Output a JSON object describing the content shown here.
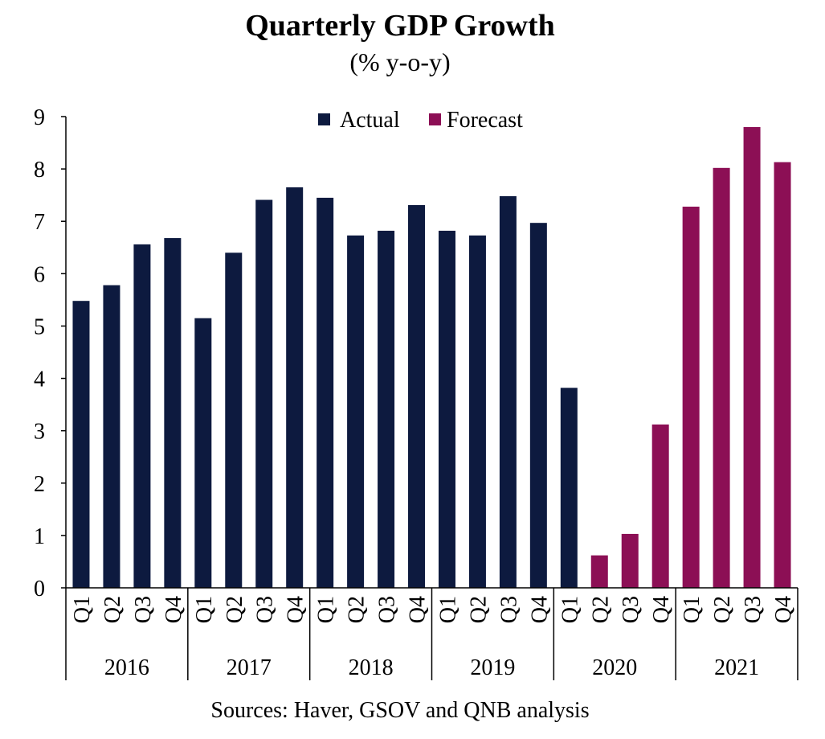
{
  "chart_data": {
    "type": "bar",
    "title": "Quarterly GDP Growth",
    "subtitle": "(% y-o-y)",
    "xlabel": "",
    "ylabel": "",
    "ylim": [
      0,
      9
    ],
    "yticks": [
      0,
      1,
      2,
      3,
      4,
      5,
      6,
      7,
      8,
      9
    ],
    "grid": false,
    "legend_position": "top-center",
    "years": [
      "2016",
      "2017",
      "2018",
      "2019",
      "2020",
      "2021"
    ],
    "quarters": [
      "Q1",
      "Q2",
      "Q3",
      "Q4"
    ],
    "categories": [
      "Q1",
      "Q2",
      "Q3",
      "Q4",
      "Q1",
      "Q2",
      "Q3",
      "Q4",
      "Q1",
      "Q2",
      "Q3",
      "Q4",
      "Q1",
      "Q2",
      "Q3",
      "Q4",
      "Q1",
      "Q2",
      "Q3",
      "Q4",
      "Q1",
      "Q2",
      "Q3",
      "Q4"
    ],
    "series": [
      {
        "name": "Actual",
        "color": "#0d1a3f",
        "values": [
          5.48,
          5.78,
          6.56,
          6.68,
          5.15,
          6.4,
          7.41,
          7.65,
          7.45,
          6.73,
          6.82,
          7.31,
          6.82,
          6.73,
          7.48,
          6.97,
          3.82,
          null,
          null,
          null,
          null,
          null,
          null,
          null
        ]
      },
      {
        "name": "Forecast",
        "color": "#8c0f55",
        "values": [
          null,
          null,
          null,
          null,
          null,
          null,
          null,
          null,
          null,
          null,
          null,
          null,
          null,
          null,
          null,
          null,
          null,
          0.62,
          1.03,
          3.12,
          7.28,
          8.02,
          8.8,
          8.13
        ]
      }
    ],
    "source": "Sources: Haver, GSOV and QNB analysis"
  }
}
